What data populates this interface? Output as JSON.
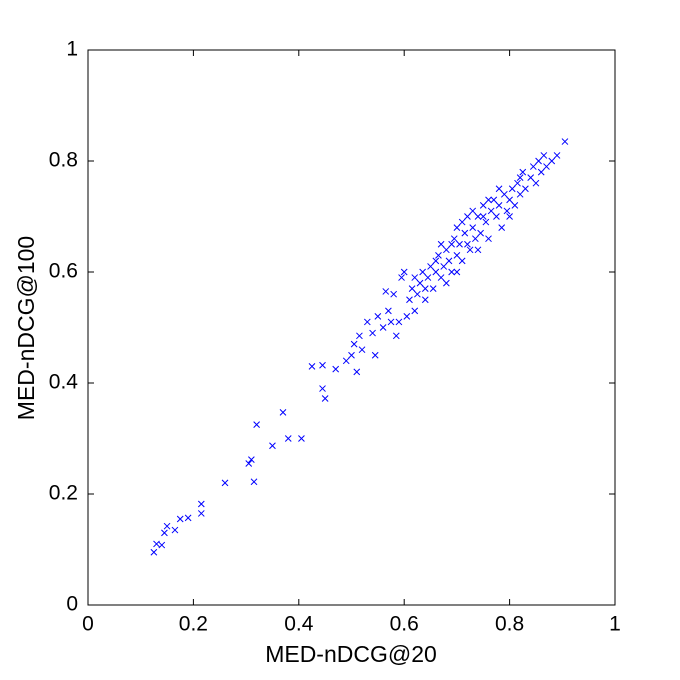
{
  "chart_data": {
    "type": "scatter",
    "xlabel": "MED-nDCG@20",
    "ylabel": "MED-nDCG@100",
    "color": "#0000ff",
    "marker": "x",
    "xlim": [
      0,
      1
    ],
    "ylim": [
      0,
      1
    ],
    "xticks": [
      0,
      0.2,
      0.4,
      0.6,
      0.8,
      1
    ],
    "yticks": [
      0,
      0.2,
      0.4,
      0.6,
      0.8,
      1
    ],
    "grid": false,
    "x": [
      0.125,
      0.13,
      0.14,
      0.145,
      0.15,
      0.165,
      0.175,
      0.19,
      0.215,
      0.215,
      0.26,
      0.305,
      0.31,
      0.315,
      0.32,
      0.35,
      0.37,
      0.38,
      0.405,
      0.425,
      0.445,
      0.45,
      0.445,
      0.47,
      0.49,
      0.5,
      0.505,
      0.51,
      0.515,
      0.52,
      0.53,
      0.54,
      0.545,
      0.55,
      0.56,
      0.565,
      0.57,
      0.575,
      0.58,
      0.585,
      0.59,
      0.595,
      0.6,
      0.605,
      0.61,
      0.615,
      0.62,
      0.625,
      0.63,
      0.635,
      0.64,
      0.645,
      0.65,
      0.655,
      0.66,
      0.665,
      0.67,
      0.675,
      0.68,
      0.685,
      0.69,
      0.695,
      0.7,
      0.7,
      0.705,
      0.71,
      0.715,
      0.72,
      0.725,
      0.73,
      0.735,
      0.74,
      0.745,
      0.75,
      0.755,
      0.76,
      0.765,
      0.77,
      0.775,
      0.78,
      0.785,
      0.79,
      0.795,
      0.8,
      0.805,
      0.81,
      0.815,
      0.82,
      0.825,
      0.83,
      0.84,
      0.845,
      0.85,
      0.855,
      0.86,
      0.865,
      0.87,
      0.88,
      0.89,
      0.905,
      0.68,
      0.66,
      0.72,
      0.74,
      0.76,
      0.69,
      0.71,
      0.73,
      0.75,
      0.78,
      0.8,
      0.82,
      0.7,
      0.64,
      0.62,
      0.67
    ],
    "values": [
      0.095,
      0.11,
      0.108,
      0.13,
      0.142,
      0.135,
      0.155,
      0.157,
      0.165,
      0.182,
      0.22,
      0.255,
      0.262,
      0.222,
      0.325,
      0.287,
      0.347,
      0.3,
      0.3,
      0.43,
      0.39,
      0.372,
      0.432,
      0.425,
      0.44,
      0.45,
      0.47,
      0.42,
      0.485,
      0.46,
      0.51,
      0.49,
      0.45,
      0.52,
      0.5,
      0.565,
      0.53,
      0.51,
      0.56,
      0.485,
      0.51,
      0.59,
      0.6,
      0.52,
      0.55,
      0.57,
      0.53,
      0.56,
      0.58,
      0.6,
      0.55,
      0.59,
      0.61,
      0.57,
      0.6,
      0.63,
      0.59,
      0.61,
      0.64,
      0.62,
      0.6,
      0.66,
      0.63,
      0.68,
      0.65,
      0.62,
      0.67,
      0.7,
      0.64,
      0.68,
      0.66,
      0.7,
      0.67,
      0.72,
      0.69,
      0.66,
      0.71,
      0.73,
      0.7,
      0.72,
      0.68,
      0.74,
      0.71,
      0.73,
      0.75,
      0.72,
      0.76,
      0.74,
      0.78,
      0.75,
      0.77,
      0.79,
      0.76,
      0.8,
      0.78,
      0.81,
      0.79,
      0.8,
      0.81,
      0.835,
      0.58,
      0.62,
      0.65,
      0.64,
      0.73,
      0.65,
      0.69,
      0.71,
      0.7,
      0.75,
      0.7,
      0.77,
      0.6,
      0.57,
      0.59,
      0.65
    ]
  }
}
